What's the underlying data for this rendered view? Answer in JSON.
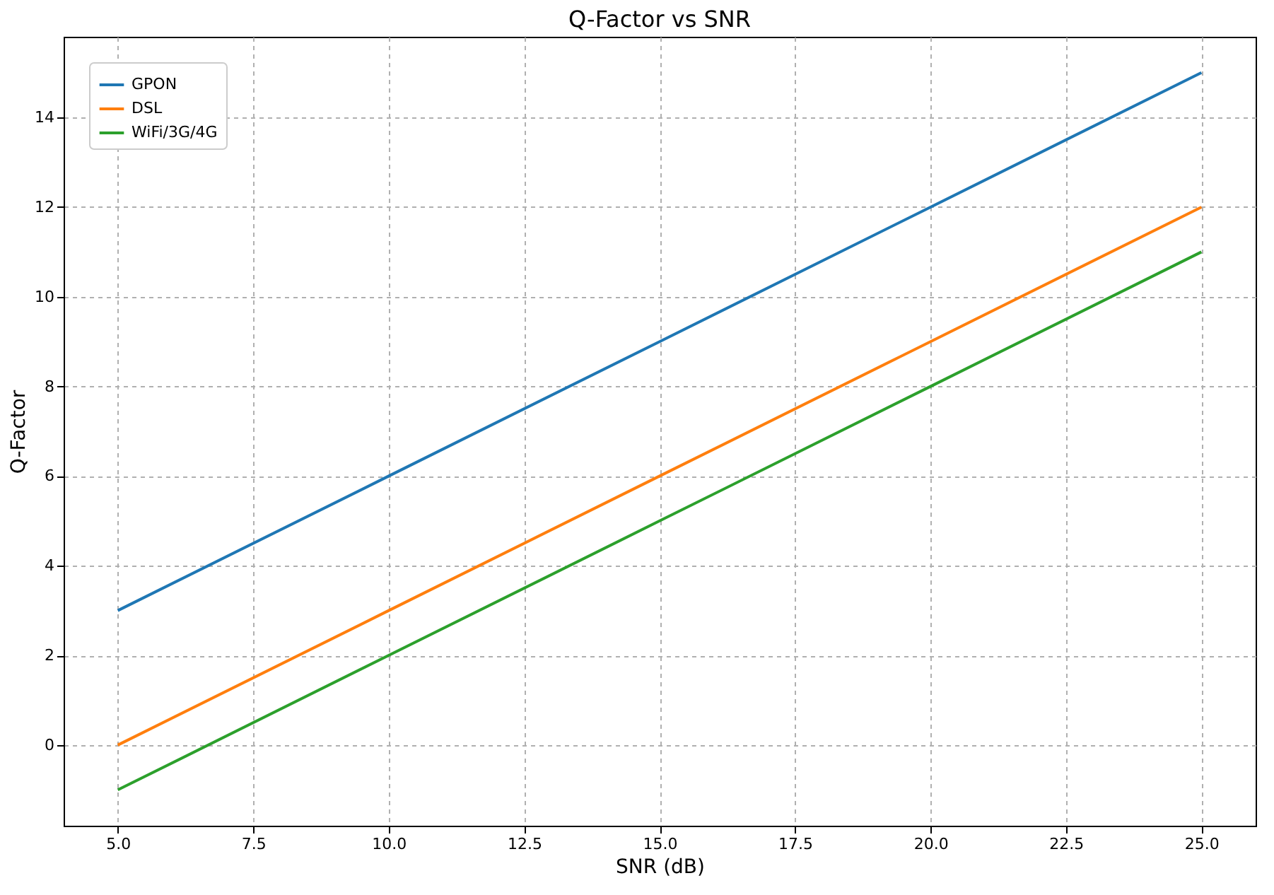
{
  "chart_data": {
    "type": "line",
    "title": "Q-Factor vs SNR",
    "xlabel": "SNR (dB)",
    "ylabel": "Q-Factor",
    "x": [
      5,
      10,
      15,
      20,
      25
    ],
    "series": [
      {
        "name": "GPON",
        "color": "#1f77b4",
        "values": [
          3,
          6,
          9,
          12,
          15
        ]
      },
      {
        "name": "DSL",
        "color": "#ff7f0e",
        "values": [
          0,
          3,
          6,
          9,
          12
        ]
      },
      {
        "name": "WiFi/3G/4G",
        "color": "#2ca02c",
        "values": [
          -1,
          2,
          5,
          8,
          11
        ]
      }
    ],
    "xlim": [
      4,
      26
    ],
    "ylim": [
      -1.8,
      15.8
    ],
    "xticks": [
      {
        "value": 5,
        "label": "5.0"
      },
      7.5,
      {
        "value": 10,
        "label": "10.0"
      },
      12.5,
      {
        "value": 15,
        "label": "15.0"
      },
      17.5,
      {
        "value": 20,
        "label": "20.0"
      },
      22.5,
      {
        "value": 25,
        "label": "25.0"
      }
    ],
    "yticks": [
      0,
      2,
      4,
      6,
      8,
      10,
      12,
      14
    ],
    "grid": true,
    "legend": "top left",
    "line_style": "solid",
    "marker": "none"
  }
}
